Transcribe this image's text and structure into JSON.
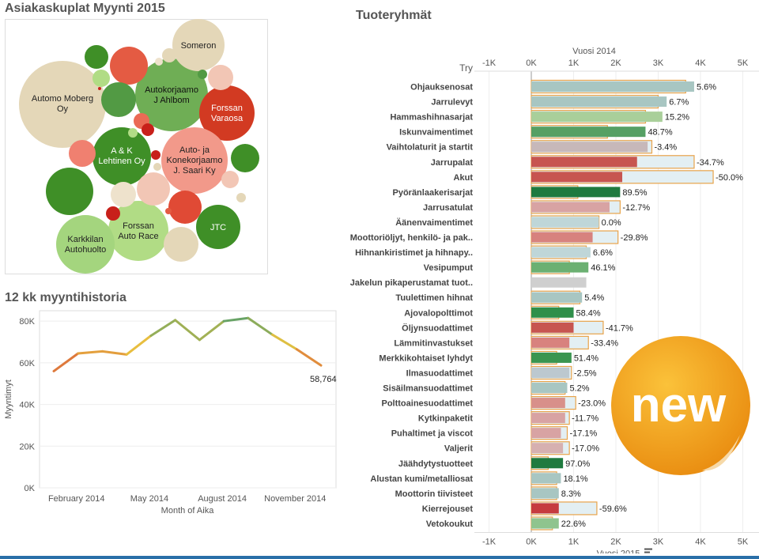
{
  "bubble_panel": {
    "title": "Asiakaskuplat Myynti 2015",
    "bubbles": [
      {
        "label": "Automo Moberg Oy",
        "color": "#e4d7b8"
      },
      {
        "label": "Autokorjaamo J Ahlbom",
        "color": "#6fae55"
      },
      {
        "label": "Someron",
        "color": "#e4d7b8"
      },
      {
        "label": "Forssan Varaosa",
        "color": "#d23a22"
      },
      {
        "label": "A & K Lehtinen Oy",
        "color": "#3f8f27"
      },
      {
        "label": "Auto- ja Konekorjaamo J. Saari Ky",
        "color": "#f2998a"
      },
      {
        "label": "Forssan Auto Race",
        "color": "#b1dc85"
      },
      {
        "label": "JTC",
        "color": "#3f8f27"
      },
      {
        "label": "Karkkilan Autohuolto",
        "color": "#a4d57e"
      }
    ]
  },
  "history_panel": {
    "title": "12 kk myyntihistoria",
    "chart_data": {
      "type": "line",
      "x": [
        "January 2014",
        "February 2014",
        "March 2014",
        "April 2014",
        "May 2014",
        "June 2014",
        "July 2014",
        "August 2014",
        "September 2014",
        "October 2014",
        "November 2014",
        "December 2014"
      ],
      "values": [
        56000,
        64500,
        65500,
        64000,
        73000,
        80500,
        71000,
        80000,
        81500,
        73500,
        66500,
        58764
      ],
      "ylabel": "Myyntimyt",
      "xlabel": "Month of Aika",
      "yticks": [
        "0K",
        "20K",
        "40K",
        "60K",
        "80K"
      ],
      "ylim": [
        0,
        85000
      ],
      "xtick_labels": [
        "February 2014",
        "May 2014",
        "August 2014",
        "November 2014"
      ],
      "last_value_label": "58,764",
      "color_scale": [
        "#d8553a",
        "#e9c23f",
        "#5aa06a"
      ]
    }
  },
  "product_panel": {
    "title": "Tuoteryhmät",
    "chart_data": {
      "type": "bar",
      "row_header": "Try",
      "top_axis_title": "Vuosi 2014",
      "bottom_axis_title": "Vuosi 2015",
      "xticks": [
        "-1K",
        "0K",
        "1K",
        "2K",
        "3K",
        "4K",
        "5K"
      ],
      "xlim": [
        -1000,
        5000
      ],
      "categories": [
        "Ohjauksenosat",
        "Jarrulevyt",
        "Hammashihnasarjat",
        "Iskunvaimentimet",
        "Vaihtolaturit ja startit",
        "Jarrupalat",
        "Akut",
        "Pyöränlaakerisarjat",
        "Jarrusatulat",
        "Äänenvaimentimet",
        "Moottoriöljyt, henkilö- ja pak..",
        "Hihnankiristimet ja hihnapy..",
        "Vesipumput",
        "Jakelun pikaperustamat tuot..",
        "Tuulettimen hihnat",
        "Ajovalopolttimot",
        "Öljynsuodattimet",
        "Lämmitinvastukset",
        "Merkkikohtaiset lyhdyt",
        "Ilmasuodattimet",
        "Sisäilmansuodattimet",
        "Polttoainesuodattimet",
        "Kytkinpaketit",
        "Puhaltimet ja viscot",
        "Valjerit",
        "Jäähdytystuotteet",
        "Alustan kumi/metalliosat",
        "Moottorin tiivisteet",
        "Kierrejouset",
        "Vetokoukut"
      ],
      "series": [
        {
          "name": "Vuosi 2015",
          "values": [
            3850,
            3200,
            3100,
            2700,
            2750,
            2500,
            2150,
            2100,
            1850,
            1600,
            1450,
            1400,
            1350,
            1300,
            1200,
            1000,
            1000,
            900,
            950,
            900,
            850,
            800,
            800,
            700,
            750,
            750,
            700,
            650,
            650,
            650
          ]
        },
        {
          "name": "Vuosi 2014",
          "values": [
            3650,
            3000,
            2700,
            1800,
            2850,
            3850,
            4300,
            1100,
            2100,
            1600,
            2050,
            1300,
            900,
            0,
            1150,
            650,
            1700,
            1350,
            600,
            950,
            800,
            1050,
            900,
            850,
            900,
            400,
            600,
            600,
            1550,
            500
          ]
        }
      ],
      "labels": [
        "5.6%",
        "6.7%",
        "15.2%",
        "48.7%",
        "-3.4%",
        "-34.7%",
        "-50.0%",
        "89.5%",
        "-12.7%",
        "0.0%",
        "-29.8%",
        "6.6%",
        "46.1%",
        "",
        "5.4%",
        "58.4%",
        "-41.7%",
        "-33.4%",
        "51.4%",
        "-2.5%",
        "5.2%",
        "-23.0%",
        "-11.7%",
        "-17.1%",
        "-17.0%",
        "97.0%",
        "18.1%",
        "8.3%",
        "-59.6%",
        "22.6%"
      ],
      "bar_colors": [
        "#a8c6c2",
        "#a8c6c2",
        "#a9cf9a",
        "#56a064",
        "#c7b8b9",
        "#c75550",
        "#c75550",
        "#1f7a3f",
        "#d8a3a3",
        "#bfd6d8",
        "#d7827e",
        "#bfd6d8",
        "#6bb072",
        "#cfcfcf",
        "#a8c6c2",
        "#2f8f4a",
        "#c75550",
        "#d8827e",
        "#3a9550",
        "#bcc8cf",
        "#a8c6c2",
        "#d8908a",
        "#d8a3a3",
        "#d8a3a3",
        "#d6b0b0",
        "#1f7a3f",
        "#a8c6c2",
        "#a8c6c2",
        "#c63b3f",
        "#8fc48e"
      ]
    }
  },
  "badge": {
    "text": "new",
    "color": "#f2a31d"
  }
}
